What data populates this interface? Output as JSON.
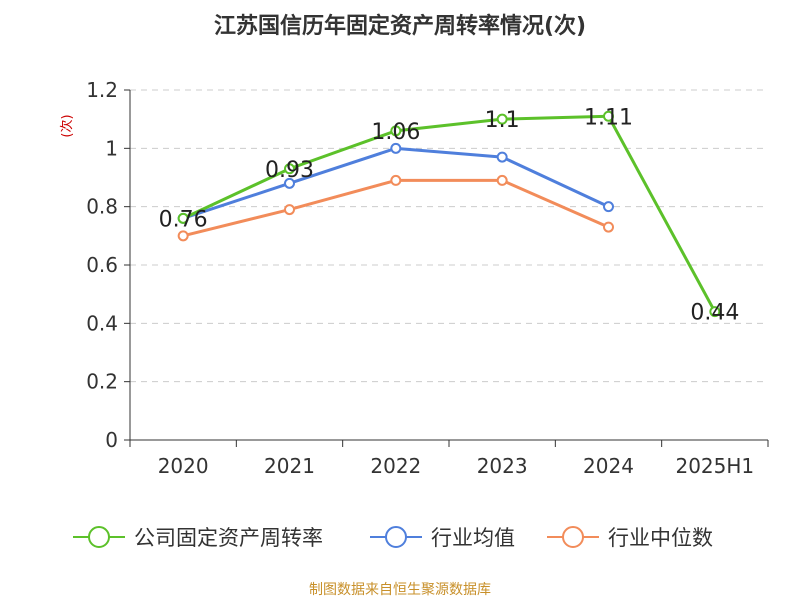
{
  "title": "江苏国信历年固定资产周转率情况(次)",
  "unit": "(次)",
  "source": "制图数据来自恒生聚源数据库",
  "colors": {
    "company": "#5cc12a",
    "industry_avg": "#4f7fdc",
    "industry_median": "#f28c5a",
    "grid": "#cccccc",
    "axis": "#333333"
  },
  "chart_data": {
    "type": "line",
    "title": "江苏国信历年固定资产周转率情况(次)",
    "categories": [
      "2020",
      "2021",
      "2022",
      "2023",
      "2024",
      "2025H1"
    ],
    "yticks": [
      "0",
      "0.2",
      "0.4",
      "0.6",
      "0.8",
      "1",
      "1.2"
    ],
    "ylim": [
      0,
      1.2
    ],
    "grid": true,
    "legend_position": "bottom",
    "series": [
      {
        "name": "公司固定资产周转率",
        "color_key": "company",
        "values": [
          0.76,
          0.93,
          1.06,
          1.1,
          1.11,
          0.44
        ],
        "labels": [
          "0.76",
          "0.93",
          "1.06",
          "1.1",
          "1.11",
          "0.44"
        ]
      },
      {
        "name": "行业均值",
        "color_key": "industry_avg",
        "values": [
          0.76,
          0.88,
          1.0,
          0.97,
          0.8,
          null
        ]
      },
      {
        "name": "行业中位数",
        "color_key": "industry_median",
        "values": [
          0.7,
          0.79,
          0.89,
          0.89,
          0.73,
          null
        ]
      }
    ]
  }
}
